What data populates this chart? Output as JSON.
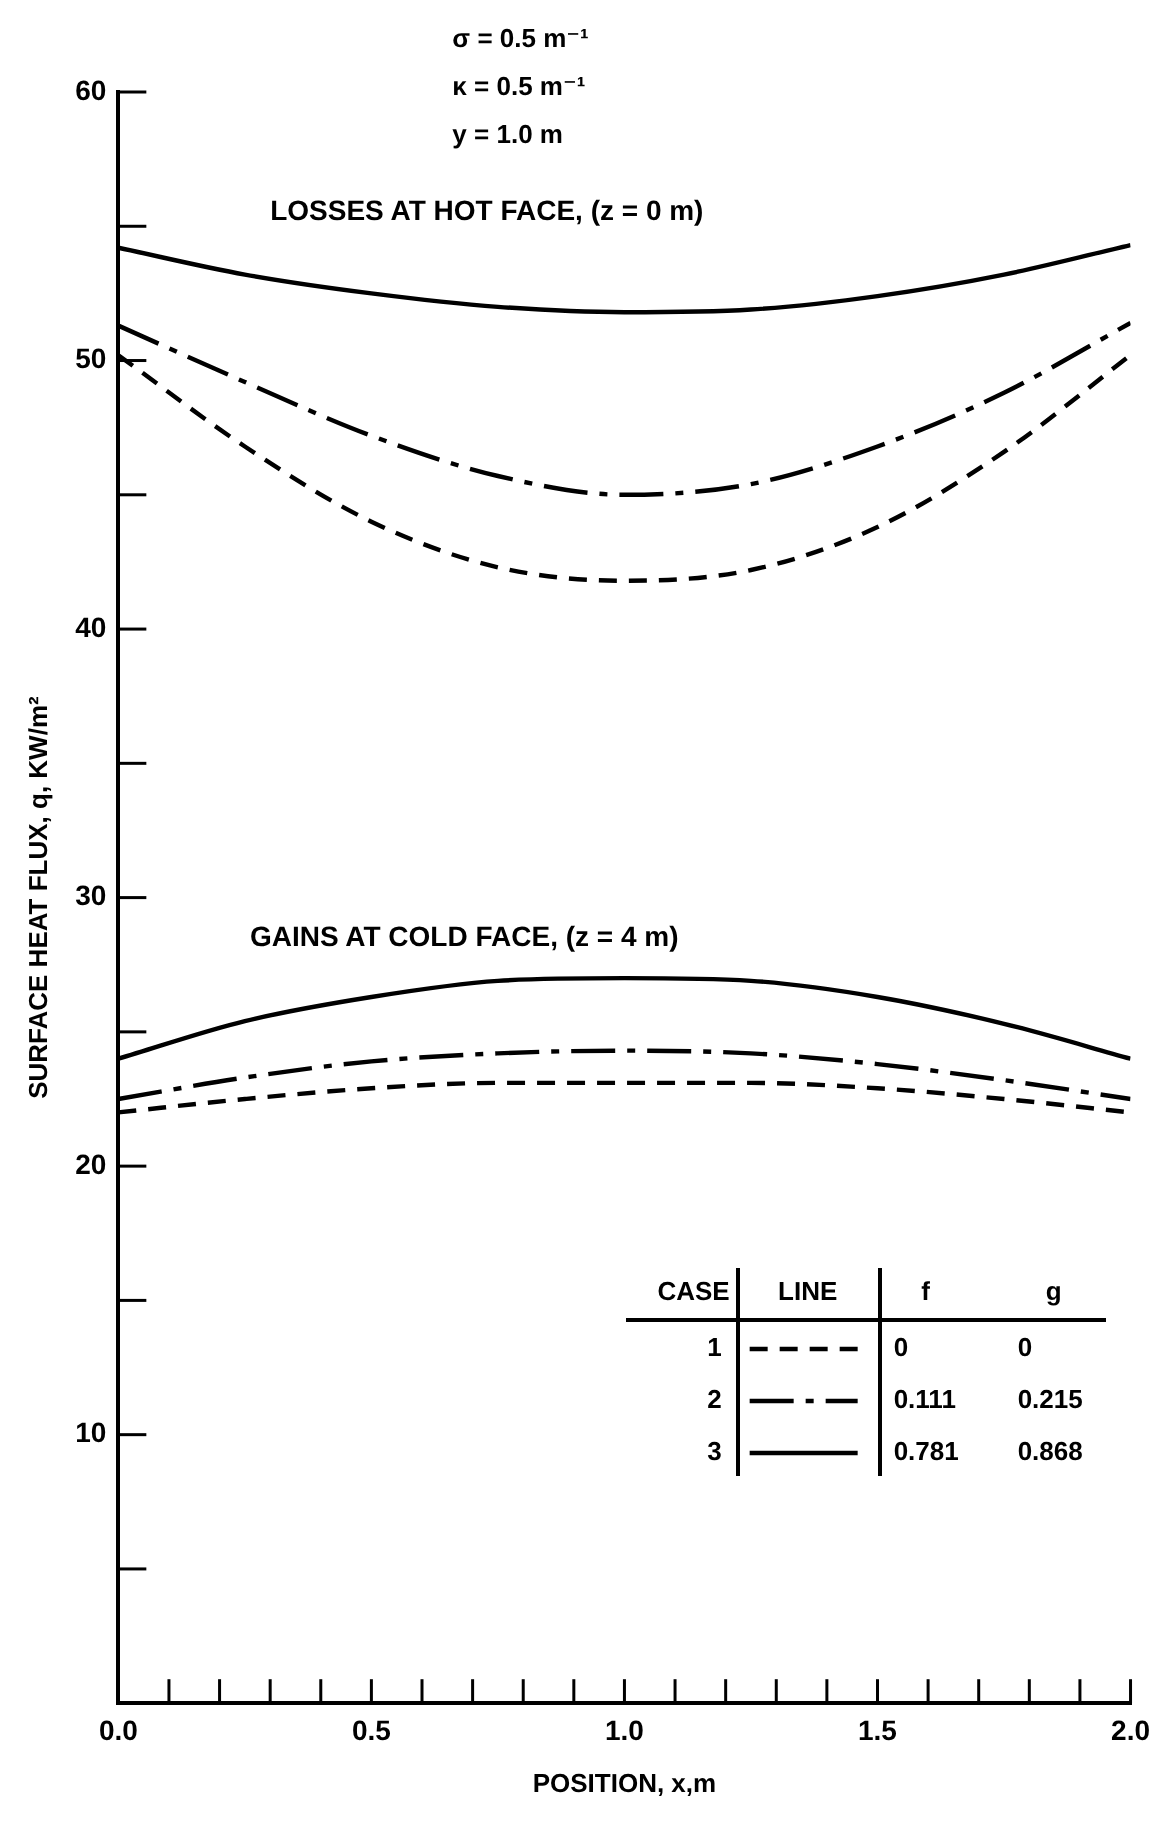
{
  "chart_data": {
    "type": "line",
    "xlabel": "POSITION, x,m",
    "ylabel": "SURFACE HEAT FLUX, q, KW/m²",
    "x": [
      0,
      0.25,
      0.5,
      0.75,
      1.0,
      1.25,
      1.5,
      1.75,
      2.0
    ],
    "series": [
      {
        "name": "1",
        "color": "#000000",
        "line_style": "dashed",
        "values": [
          50.2,
          46.8,
          44.0,
          42.3,
          41.8,
          42.2,
          43.8,
          46.6,
          50.2
        ]
      },
      {
        "name": "2",
        "color": "#000000",
        "line_style": "dashdot",
        "values": [
          51.3,
          49.2,
          47.2,
          45.7,
          45.0,
          45.4,
          46.8,
          48.8,
          51.4
        ]
      },
      {
        "name": "3",
        "color": "#000000",
        "line_style": "solid",
        "values": [
          54.2,
          53.2,
          52.5,
          52.0,
          51.8,
          51.9,
          52.4,
          53.2,
          54.3
        ]
      },
      {
        "color": "#000000",
        "line_style": "dashed",
        "values": [
          22.0,
          22.5,
          22.9,
          23.1,
          23.1,
          23.1,
          22.9,
          22.5,
          22.0
        ]
      },
      {
        "color": "#000000",
        "line_style": "dashdot",
        "values": [
          22.5,
          23.3,
          23.9,
          24.2,
          24.3,
          24.2,
          23.8,
          23.2,
          22.5
        ]
      },
      {
        "color": "#000000",
        "line_style": "solid",
        "values": [
          24.0,
          25.4,
          26.3,
          26.9,
          27.0,
          26.9,
          26.3,
          25.3,
          24.0
        ]
      }
    ],
    "xlim": [
      0,
      2.0
    ],
    "ylim": [
      0,
      60
    ],
    "xticks": [
      {
        "value": 0,
        "label": "0.0"
      },
      {
        "value": 0.1,
        "label": null
      },
      {
        "value": 0.2,
        "label": null
      },
      {
        "value": 0.3,
        "label": null
      },
      {
        "value": 0.4,
        "label": null
      },
      {
        "value": 0.5,
        "label": "0.5"
      },
      {
        "value": 0.6,
        "label": null
      },
      {
        "value": 0.7,
        "label": null
      },
      {
        "value": 0.8,
        "label": null
      },
      {
        "value": 0.9,
        "label": null
      },
      {
        "value": 1.0,
        "label": "1.0"
      },
      {
        "value": 1.1,
        "label": null
      },
      {
        "value": 1.2,
        "label": null
      },
      {
        "value": 1.3,
        "label": null
      },
      {
        "value": 1.4,
        "label": null
      },
      {
        "value": 1.5,
        "label": "1.5"
      },
      {
        "value": 1.6,
        "label": null
      },
      {
        "value": 1.7,
        "label": null
      },
      {
        "value": 1.8,
        "label": null
      },
      {
        "value": 1.9,
        "label": null
      },
      {
        "value": 2.0,
        "label": "2.0"
      }
    ],
    "yticks": [
      {
        "value": 0,
        "label": null
      },
      {
        "value": 5,
        "label": null
      },
      10,
      {
        "value": 15,
        "label": null
      },
      20,
      {
        "value": 25,
        "label": null
      },
      30,
      {
        "value": 35,
        "label": null
      },
      40,
      {
        "value": 45,
        "label": null
      },
      50,
      {
        "value": 55,
        "label": null
      },
      60
    ],
    "grid": false,
    "legend": "bottom right",
    "marker": "none",
    "annotations": [
      "σ = 0.5 m⁻¹",
      "κ = 0.5 m⁻¹",
      "y = 1.0 m",
      "LOSSES AT HOT FACE, (z = 0 m)",
      "GAINS AT COLD FACE, (z = 4 m)",
      "CASE",
      "LINE",
      "f",
      "g",
      "0",
      "0",
      "0.111",
      "0.215",
      "0.781",
      "0.868"
    ]
  }
}
